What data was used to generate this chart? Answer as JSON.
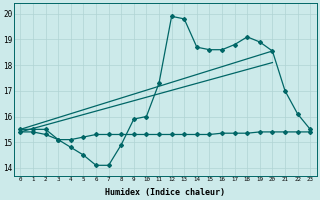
{
  "xlabel": "Humidex (Indice chaleur)",
  "bg_color": "#cceaea",
  "line_color": "#006666",
  "grid_color": "#b0d4d4",
  "xlim": [
    -0.5,
    23.5
  ],
  "ylim": [
    13.7,
    20.4
  ],
  "xticks": [
    0,
    1,
    2,
    3,
    4,
    5,
    6,
    7,
    8,
    9,
    10,
    11,
    12,
    13,
    14,
    15,
    16,
    17,
    18,
    19,
    20,
    21,
    22,
    23
  ],
  "yticks": [
    14,
    15,
    16,
    17,
    18,
    19,
    20
  ],
  "line1_x": [
    0,
    1,
    2,
    3,
    4,
    5,
    6,
    7,
    8,
    9,
    10,
    11,
    12,
    13,
    14,
    15,
    16,
    17,
    18,
    19,
    20,
    21,
    22,
    23
  ],
  "line1_y": [
    15.5,
    15.5,
    15.5,
    15.1,
    14.8,
    14.5,
    14.1,
    14.1,
    14.9,
    15.9,
    16.0,
    17.3,
    19.9,
    19.8,
    18.7,
    18.6,
    18.6,
    18.8,
    19.1,
    18.9,
    18.55,
    17.0,
    16.1,
    15.5
  ],
  "line2_x": [
    0,
    1,
    2,
    3,
    4,
    5,
    6,
    7,
    8,
    9,
    10,
    11,
    12,
    13,
    14,
    15,
    16,
    17,
    18,
    19,
    20,
    21,
    22,
    23
  ],
  "line2_y": [
    15.4,
    15.4,
    15.3,
    15.1,
    15.1,
    15.2,
    15.3,
    15.3,
    15.3,
    15.3,
    15.3,
    15.3,
    15.3,
    15.3,
    15.3,
    15.3,
    15.35,
    15.35,
    15.35,
    15.4,
    15.4,
    15.4,
    15.4,
    15.4
  ],
  "line3_x": [
    0,
    20
  ],
  "line3_y": [
    15.5,
    18.55
  ],
  "line4_x": [
    0,
    20
  ],
  "line4_y": [
    15.4,
    18.1
  ],
  "markersize": 2.0,
  "linewidth": 0.9,
  "xlabel_fontsize": 6,
  "xtick_fontsize": 4.2,
  "ytick_fontsize": 5.5
}
